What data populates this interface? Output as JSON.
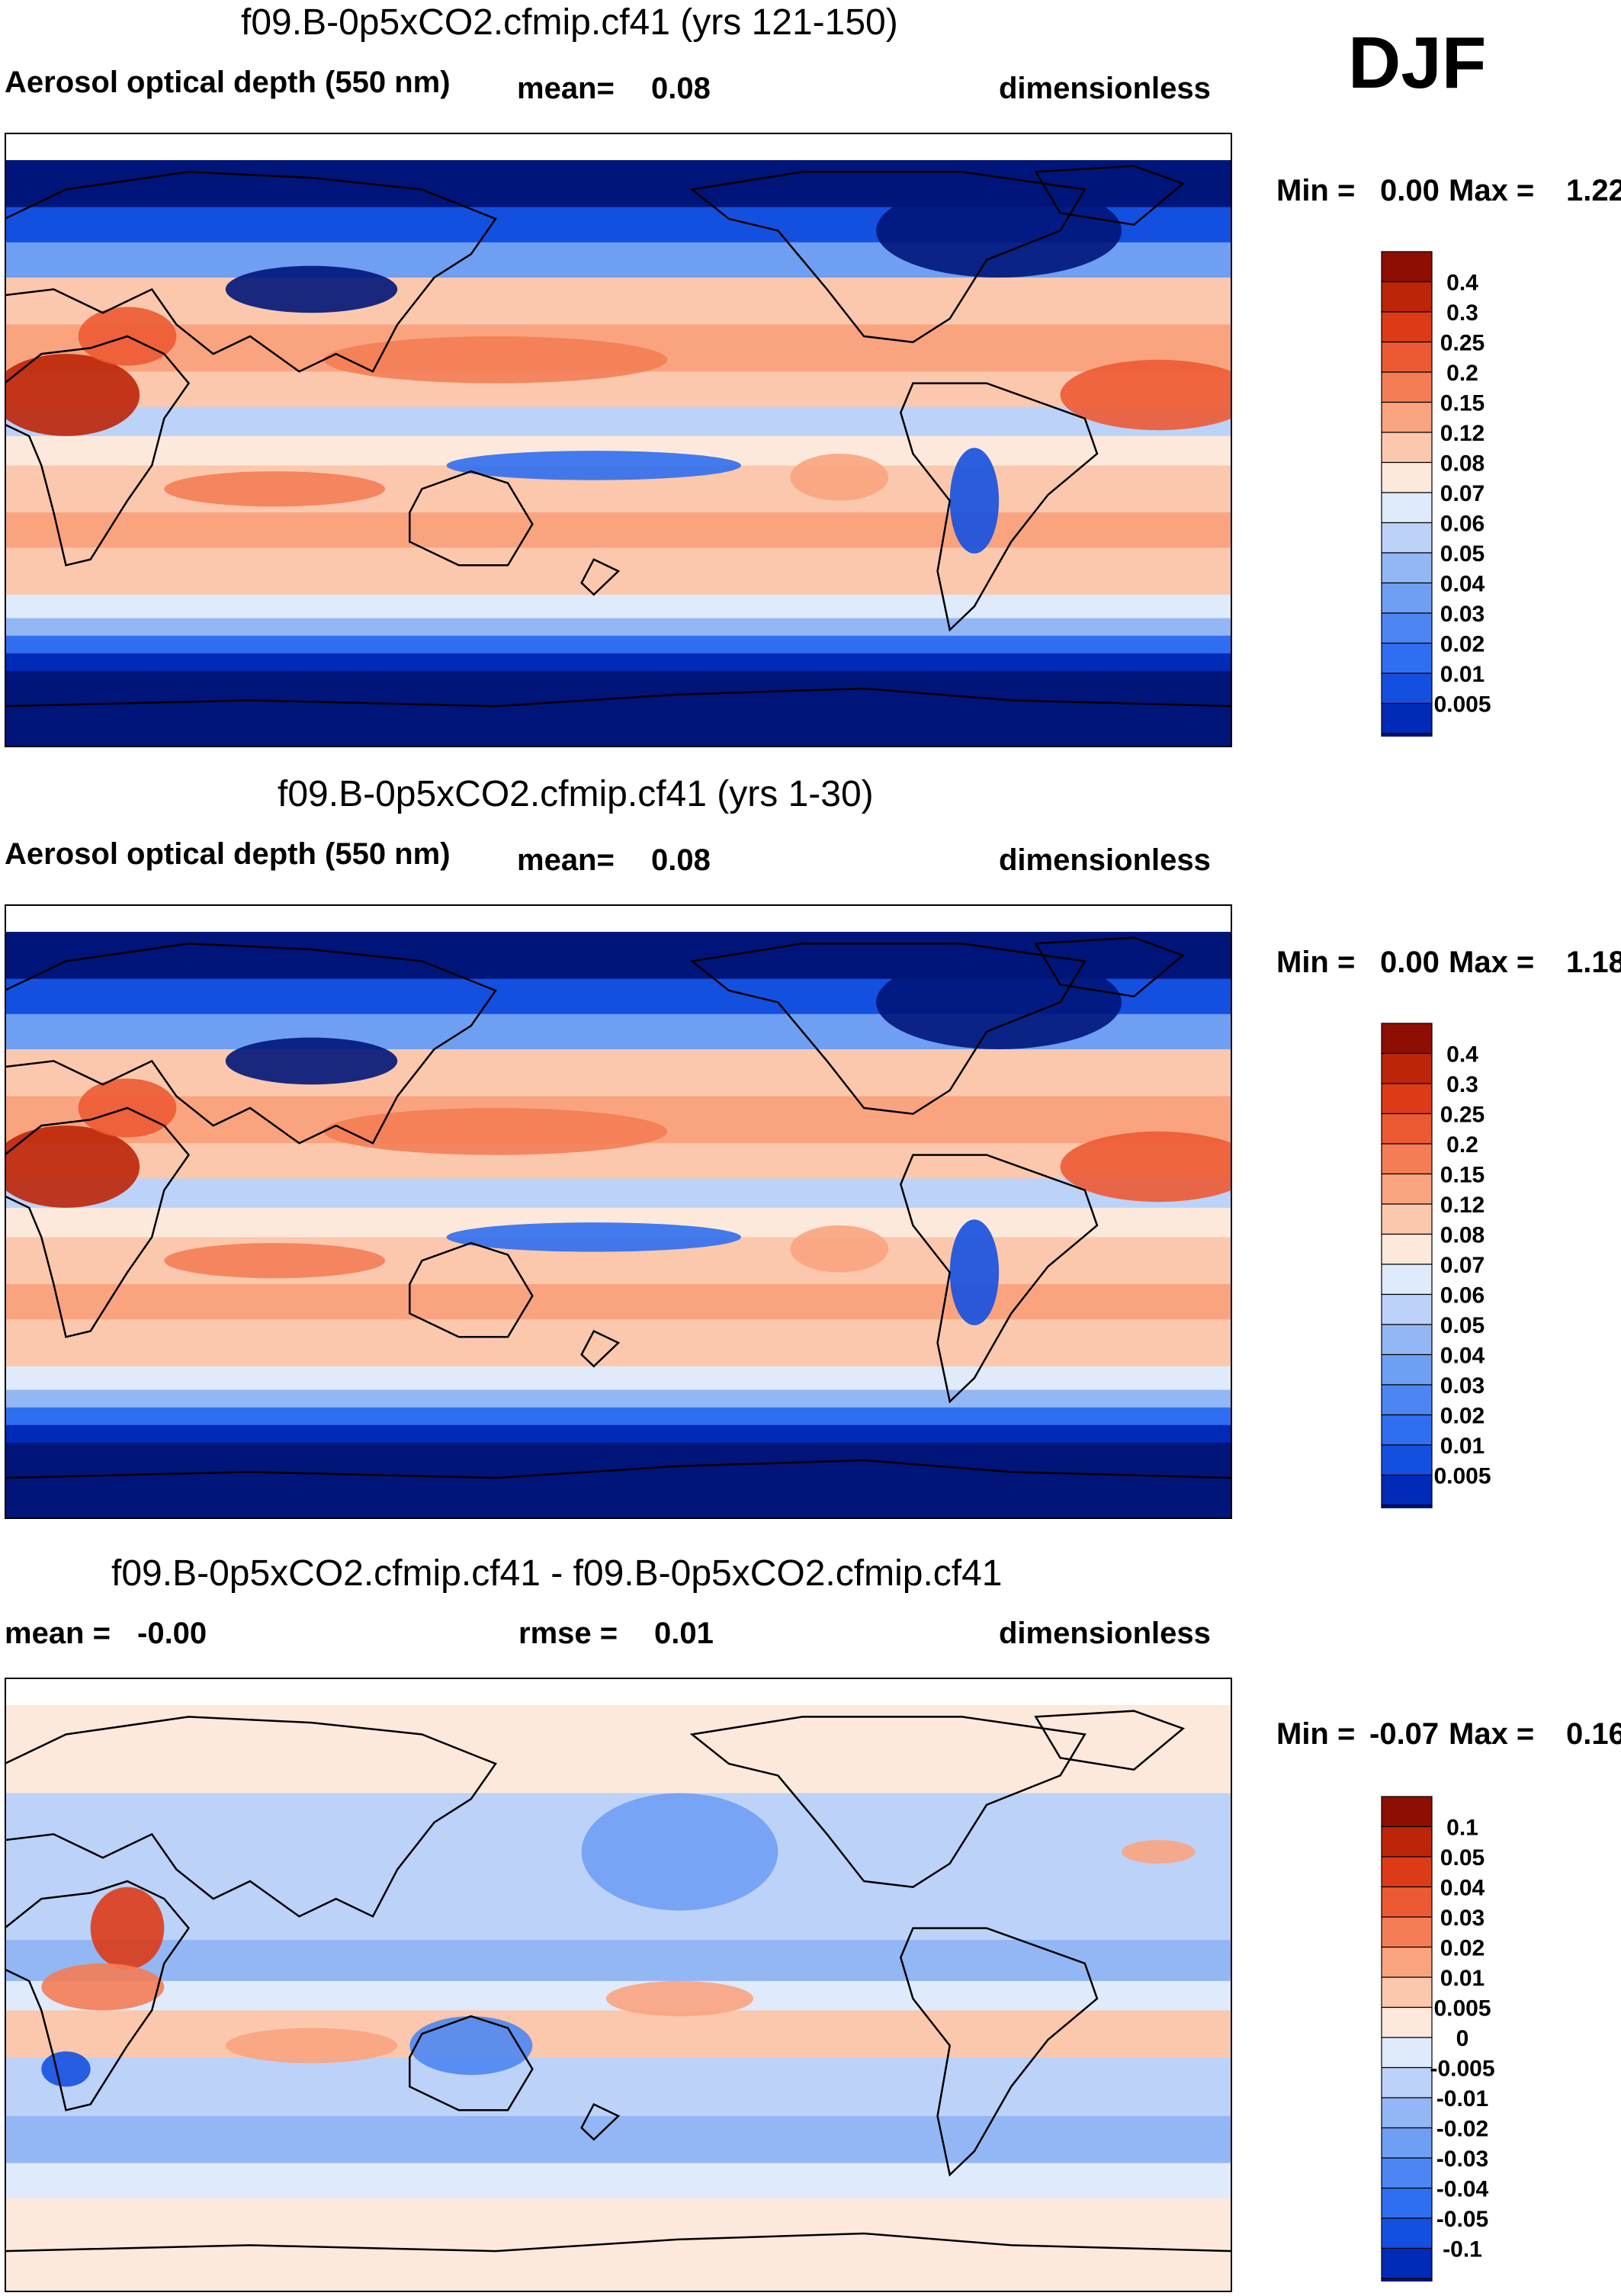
{
  "season": "DJF",
  "colors": {
    "coast": "#000000",
    "aod_levels_colors": [
      "#00157a",
      "#002ab8",
      "#1450e0",
      "#2f6ef0",
      "#4d86f2",
      "#6f9ff3",
      "#93b7f5",
      "#bcd2f8",
      "#dfeafb",
      "#fde9dc",
      "#fbc8ad",
      "#f9a47f",
      "#f47d55",
      "#ec5a33",
      "#dd3b17",
      "#bd2508",
      "#8f0e02"
    ],
    "diff_levels_colors": [
      "#00157a",
      "#002ab8",
      "#1450e0",
      "#2f6ef0",
      "#4d86f2",
      "#6f9ff3",
      "#93b7f5",
      "#bcd2f8",
      "#dfeafb",
      "#fde9dc",
      "#fbc8ad",
      "#f9a47f",
      "#f47d55",
      "#ec5a33",
      "#dd3b17",
      "#bd2508",
      "#8f0e02"
    ]
  },
  "chart_data": [
    {
      "type": "heatmap",
      "title": "f09.B-0p5xCO2.cfmip.cf41 (yrs 121-150)",
      "variable": "Aerosol optical depth (550 nm)",
      "mean_label": "mean=",
      "mean_value": "0.08",
      "units": "dimensionless",
      "min_label": "Min =",
      "min_value": "0.00",
      "max_label": "Max =",
      "max_value": "1.22",
      "field": "aod",
      "colorbar_labels": [
        "0.4",
        "0.3",
        "0.25",
        "0.2",
        "0.15",
        "0.12",
        "0.08",
        "0.07",
        "0.06",
        "0.05",
        "0.04",
        "0.03",
        "0.02",
        "0.01",
        "0.005"
      ]
    },
    {
      "type": "heatmap",
      "title": "f09.B-0p5xCO2.cfmip.cf41 (yrs 1-30)",
      "variable": "Aerosol optical depth (550 nm)",
      "mean_label": "mean=",
      "mean_value": "0.08",
      "units": "dimensionless",
      "min_label": "Min =",
      "min_value": "0.00",
      "max_label": "Max =",
      "max_value": "1.18",
      "field": "aod",
      "colorbar_labels": [
        "0.4",
        "0.3",
        "0.25",
        "0.2",
        "0.15",
        "0.12",
        "0.08",
        "0.07",
        "0.06",
        "0.05",
        "0.04",
        "0.03",
        "0.02",
        "0.01",
        "0.005"
      ]
    },
    {
      "type": "heatmap",
      "title": "f09.B-0p5xCO2.cfmip.cf41 - f09.B-0p5xCO2.cfmip.cf41",
      "mean_label": "mean =",
      "mean_value": "-0.00",
      "rmse_label": "rmse =",
      "rmse_value": "0.01",
      "units": "dimensionless",
      "min_label": "Min =",
      "min_value": "-0.07",
      "max_label": "Max =",
      "max_value": "0.16",
      "field": "diff",
      "colorbar_labels": [
        "0.1",
        "0.05",
        "0.04",
        "0.03",
        "0.02",
        "0.01",
        "0.005",
        "0",
        "-0.005",
        "-0.01",
        "-0.02",
        "-0.03",
        "-0.04",
        "-0.05",
        "-0.1"
      ]
    }
  ]
}
